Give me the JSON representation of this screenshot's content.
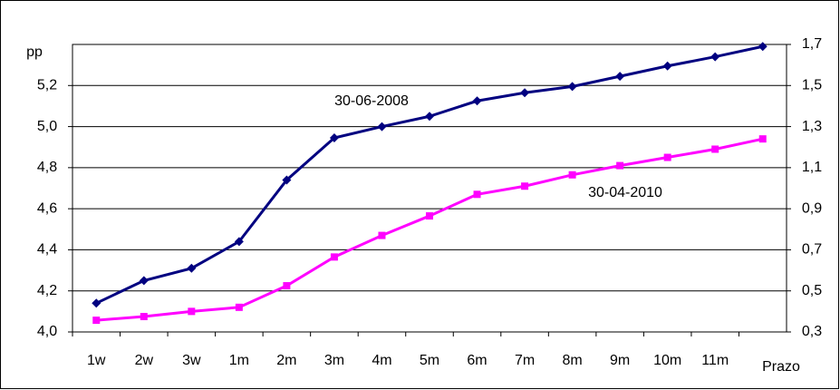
{
  "chart_data": {
    "type": "line",
    "y_label": "pp",
    "x_label": "Prazo",
    "categories": [
      "1w",
      "2w",
      "3w",
      "1m",
      "2m",
      "3m",
      "4m",
      "5m",
      "6m",
      "7m",
      "8m",
      "9m",
      "10m",
      "11m",
      null
    ],
    "series": [
      {
        "name": "30-06-2008",
        "color": "#000080",
        "marker": "diamond",
        "values": [
          4.14,
          4.25,
          4.31,
          4.44,
          4.74,
          4.945,
          5.0,
          5.05,
          5.125,
          5.165,
          5.195,
          5.245,
          5.295,
          5.34,
          5.39
        ]
      },
      {
        "name": "30-04-2010",
        "color": "#ff00ff",
        "marker": "square",
        "axis": "y2",
        "values": [
          0.357,
          0.375,
          0.4,
          0.42,
          0.525,
          0.665,
          0.77,
          0.865,
          0.97,
          1.01,
          1.065,
          1.11,
          1.15,
          1.19,
          1.24
        ]
      }
    ],
    "ylim": [
      4.0,
      5.4
    ],
    "yticks": [
      {
        "value": 4.0,
        "label": "4,0"
      },
      {
        "value": 4.2,
        "label": "4,2"
      },
      {
        "value": 4.4,
        "label": "4,4"
      },
      {
        "value": 4.6,
        "label": "4,6"
      },
      {
        "value": 4.8,
        "label": "4,8"
      },
      {
        "value": 5.0,
        "label": "5,0"
      },
      {
        "value": 5.2,
        "label": "5,2"
      }
    ],
    "y2lim": [
      0.3,
      1.7
    ],
    "y2ticks": [
      {
        "value": 0.3,
        "label": "0,3"
      },
      {
        "value": 0.5,
        "label": "0,5"
      },
      {
        "value": 0.7,
        "label": "0,7"
      },
      {
        "value": 0.9,
        "label": "0,9"
      },
      {
        "value": 1.1,
        "label": "1,1"
      },
      {
        "value": 1.3,
        "label": "1,3"
      },
      {
        "value": 1.5,
        "label": "1,5"
      },
      {
        "value": 1.7,
        "label": "1,7"
      }
    ],
    "grid": true
  }
}
